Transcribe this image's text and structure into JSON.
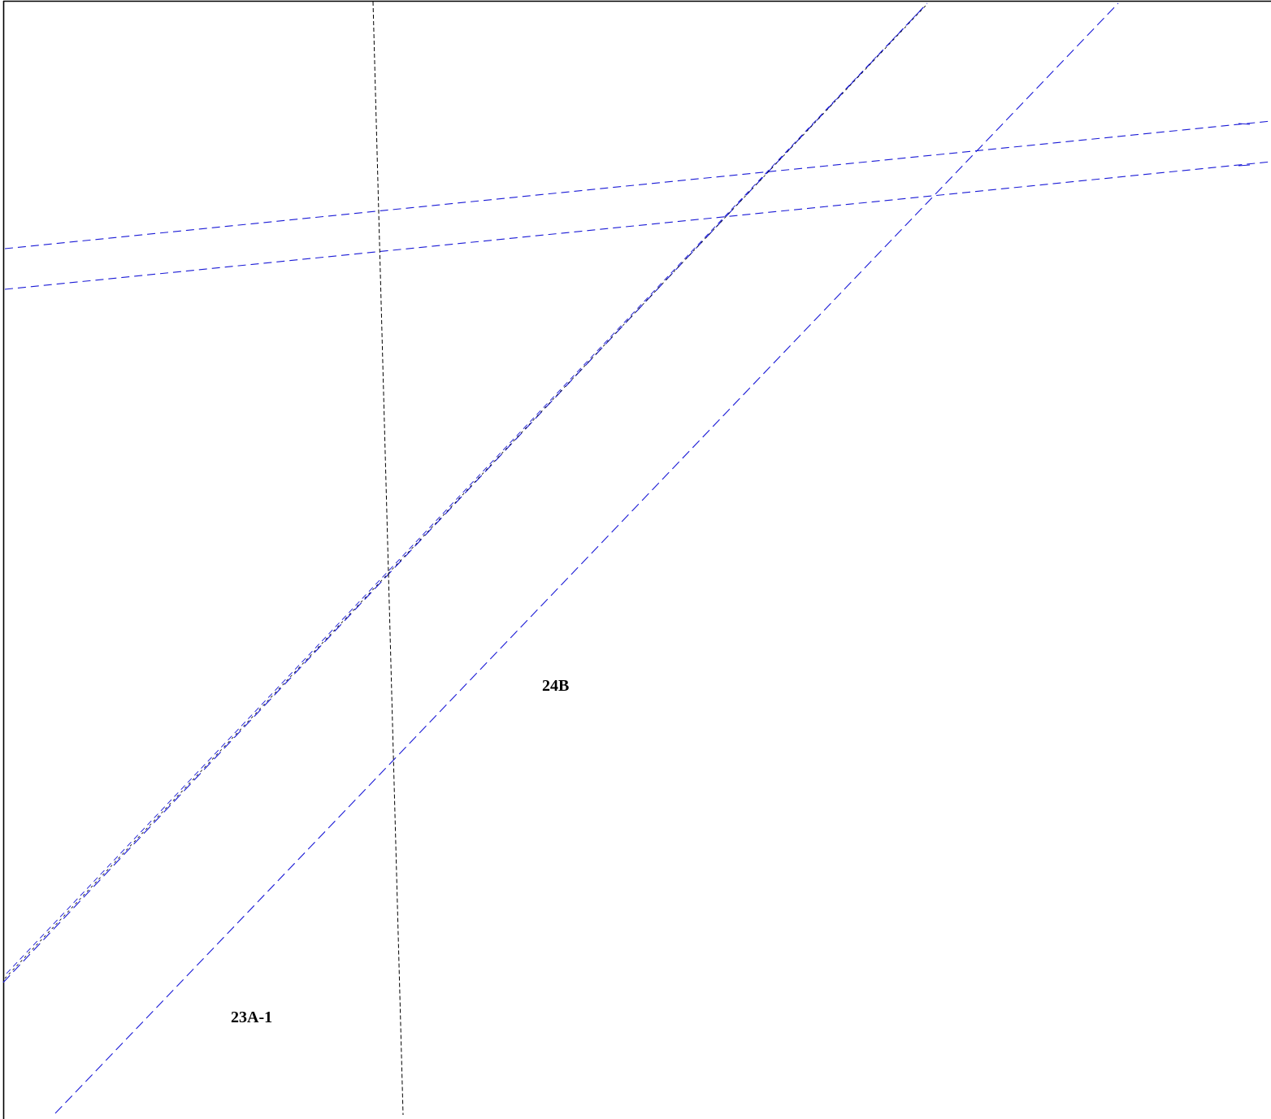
{
  "map": {
    "parcel_labels": [
      {
        "id": "label-24b",
        "text": "24B"
      },
      {
        "id": "label-23a-1",
        "text": "23A-1"
      }
    ],
    "colors": {
      "background": "#ffffff",
      "frame": "#000000",
      "boundary_line": "#1a1ad6",
      "reference_line": "#000000",
      "label_text": "#000000"
    }
  }
}
